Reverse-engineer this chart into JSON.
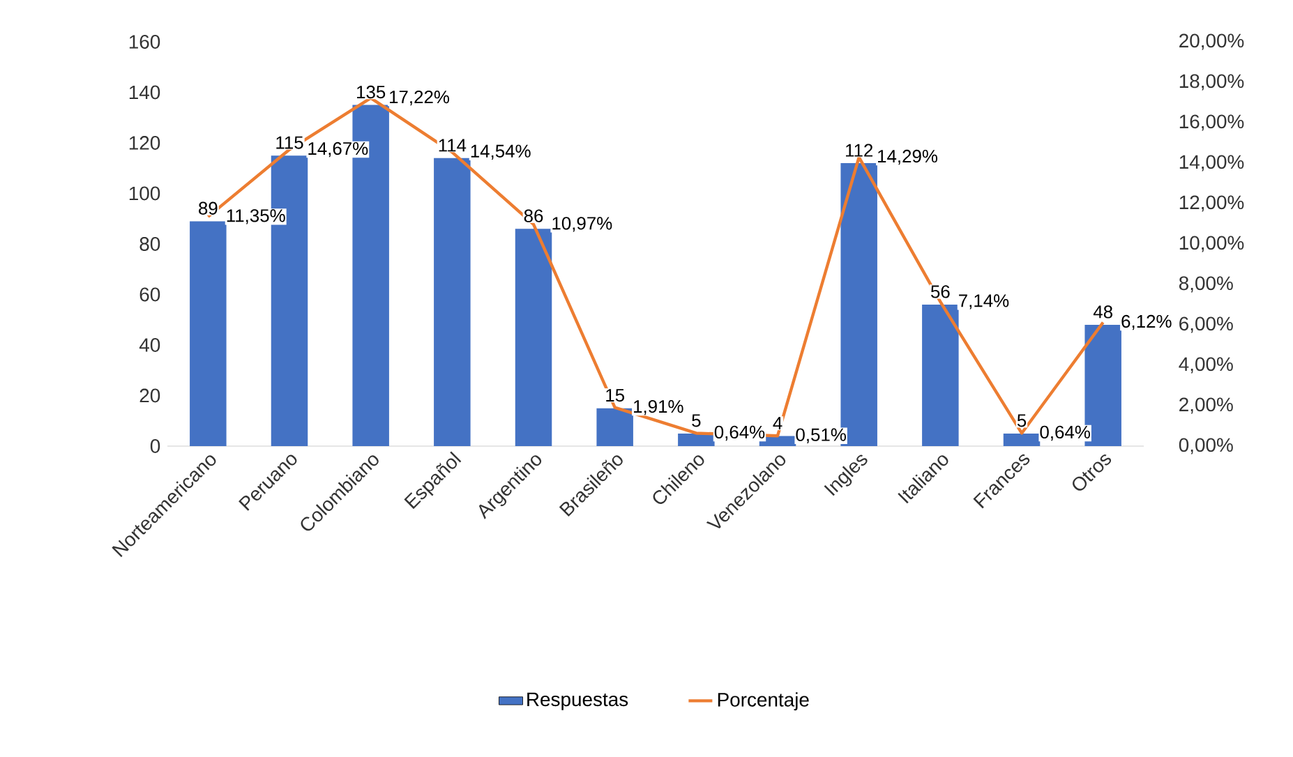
{
  "chart_data": {
    "type": "bar",
    "categories": [
      "Norteamericano",
      "Peruano",
      "Colombiano",
      "Español",
      "Argentino",
      "Brasileño",
      "Chileno",
      "Venezolano",
      "Ingles",
      "Italiano",
      "Frances",
      "Otros"
    ],
    "series": [
      {
        "name": "Respuestas",
        "color": "#4472c4",
        "values": [
          89,
          115,
          135,
          114,
          86,
          15,
          5,
          4,
          112,
          56,
          5,
          48
        ],
        "value_labels": [
          "89",
          "115",
          "135",
          "114",
          "86",
          "15",
          "5",
          "4",
          "112",
          "56",
          "5",
          "48"
        ]
      },
      {
        "name": "Porcentaje",
        "type": "line",
        "axis": "y2",
        "color": "#ed7d31",
        "values": [
          11.35,
          14.67,
          17.22,
          14.54,
          10.97,
          1.91,
          0.64,
          0.51,
          14.29,
          7.14,
          0.64,
          6.12
        ],
        "value_labels": [
          "11,35%",
          "14,67%",
          "17,22%",
          "14,54%",
          "10,97%",
          "1,91%",
          "0,64%",
          "0,51%",
          "14,29%",
          "7,14%",
          "0,64%",
          "6,12%"
        ]
      }
    ],
    "ylim": [
      0,
      160
    ],
    "yticks": [
      0,
      20,
      40,
      60,
      80,
      100,
      120,
      140,
      160
    ],
    "y2lim": [
      0,
      20
    ],
    "y2ticks": [
      {
        "value": 0,
        "label": "0,00%"
      },
      {
        "value": 2,
        "label": "2,00%"
      },
      {
        "value": 4,
        "label": "4,00%"
      },
      {
        "value": 6,
        "label": "6,00%"
      },
      {
        "value": 8,
        "label": "8,00%"
      },
      {
        "value": 10,
        "label": "10,00%"
      },
      {
        "value": 12,
        "label": "12,00%"
      },
      {
        "value": 14,
        "label": "14,00%"
      },
      {
        "value": 16,
        "label": "16,00%"
      },
      {
        "value": 18,
        "label": "18,00%"
      },
      {
        "value": 20,
        "label": "20,00%"
      }
    ],
    "legend": "bottom"
  }
}
